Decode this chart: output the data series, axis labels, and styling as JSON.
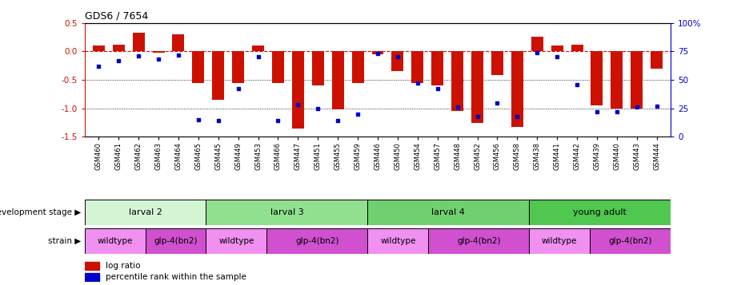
{
  "title": "GDS6 / 7654",
  "samples": [
    "GSM460",
    "GSM461",
    "GSM462",
    "GSM463",
    "GSM464",
    "GSM465",
    "GSM445",
    "GSM449",
    "GSM453",
    "GSM466",
    "GSM447",
    "GSM451",
    "GSM455",
    "GSM459",
    "GSM446",
    "GSM450",
    "GSM454",
    "GSM457",
    "GSM448",
    "GSM452",
    "GSM456",
    "GSM458",
    "GSM438",
    "GSM441",
    "GSM442",
    "GSM439",
    "GSM440",
    "GSM443",
    "GSM444"
  ],
  "log_ratio": [
    0.1,
    0.12,
    0.32,
    -0.02,
    0.3,
    -0.55,
    -0.85,
    -0.55,
    0.1,
    -0.55,
    -1.35,
    -0.6,
    -1.02,
    -0.55,
    -0.05,
    -0.35,
    -0.55,
    -0.6,
    -1.05,
    -1.25,
    -0.42,
    -1.32,
    0.25,
    0.1,
    0.12,
    -0.95,
    -1.0,
    -1.0,
    -0.3
  ],
  "percentile": [
    62,
    67,
    71,
    68,
    72,
    15,
    14,
    42,
    70,
    14,
    28,
    25,
    14,
    20,
    73,
    70,
    47,
    42,
    26,
    18,
    30,
    18,
    74,
    70,
    46,
    22,
    22,
    26,
    27
  ],
  "dev_stage_groups": [
    {
      "label": "larval 2",
      "start": 0,
      "end": 6,
      "color": "#d4f5d4"
    },
    {
      "label": "larval 3",
      "start": 6,
      "end": 14,
      "color": "#90e090"
    },
    {
      "label": "larval 4",
      "start": 14,
      "end": 22,
      "color": "#70d070"
    },
    {
      "label": "young adult",
      "start": 22,
      "end": 29,
      "color": "#50c850"
    }
  ],
  "strain_groups": [
    {
      "label": "wildtype",
      "start": 0,
      "end": 3,
      "color": "#f090f0"
    },
    {
      "label": "glp-4(bn2)",
      "start": 3,
      "end": 6,
      "color": "#d050d0"
    },
    {
      "label": "wildtype",
      "start": 6,
      "end": 9,
      "color": "#f090f0"
    },
    {
      "label": "glp-4(bn2)",
      "start": 9,
      "end": 14,
      "color": "#d050d0"
    },
    {
      "label": "wildtype",
      "start": 14,
      "end": 17,
      "color": "#f090f0"
    },
    {
      "label": "glp-4(bn2)",
      "start": 17,
      "end": 22,
      "color": "#d050d0"
    },
    {
      "label": "wildtype",
      "start": 22,
      "end": 25,
      "color": "#f090f0"
    },
    {
      "label": "glp-4(bn2)",
      "start": 25,
      "end": 29,
      "color": "#d050d0"
    }
  ],
  "bar_color": "#cc1100",
  "dot_color": "#0000cc",
  "ylim": [
    -1.5,
    0.5
  ],
  "y2lim": [
    0,
    100
  ],
  "yticks_left": [
    -1.5,
    -1.0,
    -0.5,
    0.0,
    0.5
  ],
  "yticks_right": [
    0,
    25,
    50,
    75,
    100
  ],
  "ytick_labels_right": [
    "0",
    "25",
    "50",
    "75",
    "100%"
  ]
}
